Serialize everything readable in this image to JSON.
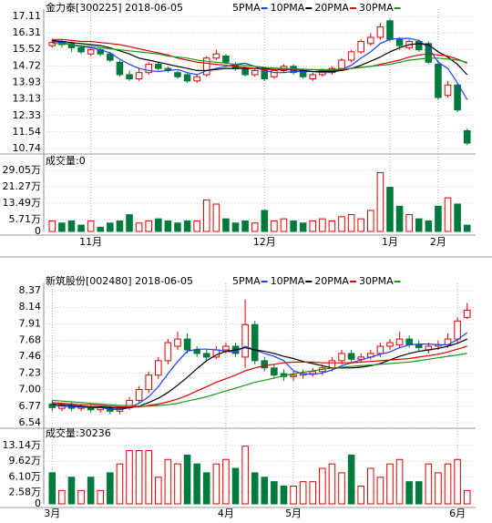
{
  "chart_data": [
    {
      "type": "candlestick",
      "title": "金力泰[300225] 2018-06-05",
      "categories": [
        null,
        null,
        null,
        null,
        "11月",
        null,
        null,
        null,
        null,
        null,
        null,
        null,
        null,
        null,
        null,
        null,
        null,
        null,
        null,
        null,
        null,
        null,
        "12月",
        null,
        null,
        null,
        null,
        null,
        null,
        null,
        null,
        null,
        null,
        null,
        null,
        "1月",
        null,
        null,
        null,
        null,
        "2月",
        null,
        null,
        null
      ],
      "open": [
        15.7,
        15.9,
        15.8,
        15.6,
        15.3,
        15.5,
        15.3,
        14.9,
        14.3,
        14.1,
        14.4,
        14.8,
        14.6,
        14.4,
        14.3,
        14.0,
        14.3,
        15.1,
        15.2,
        14.8,
        14.6,
        14.3,
        14.5,
        14.2,
        14.5,
        14.7,
        14.5,
        14.1,
        14.3,
        14.4,
        14.6,
        15.0,
        15.4,
        15.8,
        16.1,
        16.9,
        16.0,
        15.6,
        15.9,
        15.8,
        14.8,
        13.3,
        13.8,
        11.6
      ],
      "high": [
        16.0,
        16.0,
        15.9,
        15.7,
        15.6,
        15.6,
        15.4,
        15.0,
        14.5,
        14.6,
        14.9,
        14.9,
        14.7,
        14.5,
        14.4,
        14.3,
        15.2,
        15.5,
        15.3,
        14.9,
        14.7,
        14.6,
        14.6,
        14.6,
        14.8,
        14.8,
        14.6,
        14.4,
        14.6,
        14.7,
        15.1,
        15.5,
        16.0,
        16.3,
        16.8,
        17.0,
        16.1,
        16.0,
        16.0,
        15.9,
        15.0,
        14.0,
        13.9,
        11.7
      ],
      "low": [
        15.6,
        15.6,
        15.4,
        15.3,
        15.2,
        15.2,
        14.9,
        14.2,
        14.0,
        14.0,
        14.3,
        14.5,
        14.4,
        14.1,
        13.9,
        13.9,
        14.2,
        15.0,
        14.8,
        14.5,
        14.2,
        14.2,
        14.0,
        14.1,
        14.4,
        14.3,
        14.1,
        14.0,
        14.2,
        14.3,
        14.5,
        14.9,
        15.3,
        15.7,
        16.0,
        15.9,
        15.5,
        15.5,
        15.4,
        14.8,
        13.1,
        13.2,
        12.5,
        10.9
      ],
      "close": [
        15.85,
        15.75,
        15.6,
        15.4,
        15.5,
        15.3,
        15.0,
        14.3,
        14.1,
        14.4,
        14.8,
        14.6,
        14.5,
        14.2,
        14.0,
        14.2,
        15.1,
        15.3,
        14.9,
        14.6,
        14.3,
        14.5,
        14.1,
        14.5,
        14.7,
        14.4,
        14.2,
        14.3,
        14.5,
        14.6,
        15.0,
        15.4,
        15.9,
        16.1,
        16.6,
        16.0,
        15.7,
        15.9,
        15.5,
        14.9,
        13.2,
        13.8,
        12.6,
        11.0
      ],
      "up_color": "#e00000",
      "down_color": "#007a3d",
      "series": [
        {
          "name": "5PMA",
          "color": "#1f3fff",
          "values": [
            15.9,
            15.85,
            15.75,
            15.65,
            15.6,
            15.5,
            15.35,
            15.05,
            14.8,
            14.6,
            14.5,
            14.45,
            14.5,
            14.55,
            14.4,
            14.3,
            14.5,
            14.6,
            14.7,
            14.8,
            14.85,
            14.7,
            14.5,
            14.4,
            14.4,
            14.45,
            14.45,
            14.45,
            14.4,
            14.4,
            14.55,
            14.75,
            15.1,
            15.4,
            15.8,
            16.0,
            16.05,
            16.05,
            15.95,
            15.6,
            14.9,
            14.6,
            13.9,
            13.1
          ]
        },
        {
          "name": "10PMA",
          "color": "#000000",
          "values": [
            15.95,
            15.9,
            15.85,
            15.8,
            15.75,
            15.7,
            15.6,
            15.45,
            15.3,
            15.1,
            15.0,
            14.9,
            14.8,
            14.7,
            14.6,
            14.5,
            14.5,
            14.55,
            14.6,
            14.6,
            14.6,
            14.6,
            14.6,
            14.55,
            14.55,
            14.55,
            14.5,
            14.45,
            14.45,
            14.45,
            14.5,
            14.6,
            14.75,
            14.95,
            15.15,
            15.4,
            15.6,
            15.75,
            15.8,
            15.75,
            15.4,
            15.15,
            14.8,
            14.3
          ]
        },
        {
          "name": "20PMA",
          "color": "#e00000",
          "values": [
            16.0,
            16.0,
            15.95,
            15.9,
            15.9,
            15.85,
            15.8,
            15.75,
            15.65,
            15.55,
            15.45,
            15.35,
            15.25,
            15.1,
            15.0,
            14.9,
            14.85,
            14.8,
            14.75,
            14.7,
            14.65,
            14.6,
            14.55,
            14.55,
            14.55,
            14.55,
            14.55,
            14.55,
            14.5,
            14.5,
            14.55,
            14.6,
            14.65,
            14.7,
            14.8,
            14.9,
            15.0,
            15.15,
            15.25,
            15.3,
            15.25,
            15.2,
            15.05,
            14.85
          ]
        },
        {
          "name": "30PMA",
          "color": "#1a9a1a",
          "values": [
            15.8,
            15.8,
            15.75,
            15.7,
            15.65,
            15.6,
            15.55,
            15.5,
            15.45,
            15.4,
            15.35,
            15.3,
            15.2,
            15.15,
            15.1,
            15.0,
            14.95,
            14.9,
            14.85,
            14.8,
            14.75,
            14.7,
            14.65,
            14.62,
            14.6,
            14.58,
            14.56,
            14.55,
            14.55,
            14.55,
            14.57,
            14.6,
            14.65,
            14.7,
            14.75,
            14.8,
            14.9,
            15.0,
            15.05,
            15.1,
            15.1,
            15.05,
            15.0,
            14.9
          ]
        }
      ],
      "ylim": [
        10.74,
        17.11
      ],
      "yticks": [
        17.11,
        16.31,
        15.52,
        14.72,
        13.93,
        13.13,
        12.33,
        11.54,
        10.74
      ],
      "volume": {
        "title": "成交量:0",
        "values": [
          5,
          4,
          5,
          3,
          5,
          2,
          4,
          5,
          8,
          4,
          5,
          6,
          5,
          4,
          5,
          5,
          15,
          13,
          6,
          4,
          5,
          4,
          10,
          5,
          6,
          5,
          4,
          5,
          6,
          5,
          7,
          8,
          6,
          10,
          28,
          21,
          12,
          8,
          6,
          5,
          12,
          16,
          13,
          3
        ],
        "ylim": [
          0,
          29.05
        ],
        "yticks": [
          {
            "value": 29.05,
            "label": "29.05万"
          },
          {
            "value": 21.27,
            "label": "21.27万"
          },
          {
            "value": 13.49,
            "label": "13.49万"
          },
          {
            "value": 5.71,
            "label": "5.71万"
          },
          0
        ]
      }
    },
    {
      "type": "candlestick",
      "title": "新筑股份[002480] 2018-06-05",
      "categories": [
        "3月",
        null,
        null,
        null,
        null,
        null,
        null,
        null,
        null,
        null,
        null,
        null,
        null,
        null,
        null,
        null,
        null,
        null,
        "4月",
        null,
        null,
        null,
        null,
        null,
        null,
        "5月",
        null,
        null,
        null,
        null,
        null,
        null,
        null,
        null,
        null,
        null,
        null,
        null,
        null,
        null,
        null,
        null,
        "6月",
        null
      ],
      "open": [
        6.8,
        6.74,
        6.78,
        6.74,
        6.76,
        6.72,
        6.75,
        6.7,
        6.75,
        6.85,
        7.0,
        7.2,
        7.4,
        7.6,
        7.7,
        7.55,
        7.5,
        7.45,
        7.55,
        7.6,
        7.45,
        7.9,
        7.4,
        7.3,
        7.22,
        7.18,
        7.2,
        7.22,
        7.25,
        7.3,
        7.4,
        7.5,
        7.42,
        7.45,
        7.5,
        7.6,
        7.62,
        7.7,
        7.62,
        7.55,
        7.6,
        7.62,
        7.7,
        8.0
      ],
      "high": [
        6.85,
        6.82,
        6.82,
        6.8,
        6.8,
        6.78,
        6.78,
        6.78,
        6.9,
        7.05,
        7.25,
        7.45,
        7.7,
        7.8,
        7.78,
        7.6,
        7.55,
        7.6,
        7.65,
        7.65,
        8.25,
        7.95,
        7.45,
        7.35,
        7.28,
        7.25,
        7.28,
        7.3,
        7.35,
        7.45,
        7.55,
        7.55,
        7.5,
        7.55,
        7.65,
        7.7,
        7.8,
        7.75,
        7.68,
        7.65,
        7.68,
        7.78,
        8.0,
        8.2
      ],
      "low": [
        6.7,
        6.7,
        6.7,
        6.7,
        6.68,
        6.68,
        6.66,
        6.66,
        6.72,
        6.82,
        6.95,
        7.15,
        7.35,
        7.55,
        7.5,
        7.45,
        7.4,
        7.42,
        7.5,
        7.45,
        7.3,
        7.35,
        7.25,
        7.15,
        7.12,
        7.12,
        7.15,
        7.18,
        7.2,
        7.25,
        7.35,
        7.38,
        7.38,
        7.42,
        7.45,
        7.55,
        7.58,
        7.58,
        7.52,
        7.5,
        7.55,
        7.58,
        7.65,
        7.98
      ],
      "close": [
        6.75,
        6.78,
        6.74,
        6.76,
        6.72,
        6.75,
        6.7,
        6.75,
        6.85,
        7.0,
        7.2,
        7.4,
        7.65,
        7.7,
        7.55,
        7.5,
        7.45,
        7.55,
        7.6,
        7.5,
        7.9,
        7.4,
        7.3,
        7.2,
        7.18,
        7.2,
        7.22,
        7.25,
        7.3,
        7.4,
        7.5,
        7.42,
        7.45,
        7.5,
        7.6,
        7.65,
        7.7,
        7.62,
        7.58,
        7.6,
        7.62,
        7.7,
        7.95,
        8.1
      ],
      "up_color": "#e00000",
      "down_color": "#007a3d",
      "series": [
        {
          "name": "5PMA",
          "color": "#1f3fff",
          "values": [
            6.78,
            6.77,
            6.76,
            6.76,
            6.75,
            6.75,
            6.73,
            6.72,
            6.75,
            6.81,
            6.9,
            7.04,
            7.22,
            7.39,
            7.53,
            7.56,
            7.56,
            7.55,
            7.53,
            7.52,
            7.6,
            7.55,
            7.5,
            7.46,
            7.4,
            7.26,
            7.22,
            7.21,
            7.23,
            7.27,
            7.33,
            7.37,
            7.41,
            7.45,
            7.49,
            7.52,
            7.58,
            7.62,
            7.63,
            7.63,
            7.62,
            7.62,
            7.69,
            7.79
          ]
        },
        {
          "name": "10PMA",
          "color": "#000000",
          "values": [
            6.8,
            6.79,
            6.78,
            6.77,
            6.76,
            6.76,
            6.75,
            6.74,
            6.75,
            6.77,
            6.82,
            6.88,
            6.96,
            7.06,
            7.17,
            7.29,
            7.4,
            7.48,
            7.53,
            7.55,
            7.58,
            7.55,
            7.53,
            7.5,
            7.46,
            7.43,
            7.39,
            7.36,
            7.33,
            7.3,
            7.3,
            7.3,
            7.31,
            7.33,
            7.36,
            7.41,
            7.46,
            7.5,
            7.53,
            7.55,
            7.57,
            7.6,
            7.64,
            7.7
          ]
        },
        {
          "name": "20PMA",
          "color": "#e00000",
          "values": [
            6.82,
            6.81,
            6.8,
            6.79,
            6.79,
            6.78,
            6.77,
            6.76,
            6.76,
            6.76,
            6.78,
            6.8,
            6.83,
            6.87,
            6.92,
            6.98,
            7.04,
            7.1,
            7.15,
            7.2,
            7.26,
            7.3,
            7.33,
            7.35,
            7.37,
            7.38,
            7.38,
            7.38,
            7.37,
            7.37,
            7.37,
            7.37,
            7.38,
            7.39,
            7.4,
            7.41,
            7.42,
            7.43,
            7.45,
            7.47,
            7.49,
            7.52,
            7.56,
            7.6
          ]
        },
        {
          "name": "30PMA",
          "color": "#1a9a1a",
          "values": [
            6.85,
            6.84,
            6.83,
            6.82,
            6.81,
            6.8,
            6.79,
            6.78,
            6.78,
            6.77,
            6.77,
            6.78,
            6.79,
            6.81,
            6.84,
            6.87,
            6.9,
            6.94,
            6.98,
            7.02,
            7.06,
            7.1,
            7.13,
            7.16,
            7.19,
            7.22,
            7.24,
            7.26,
            7.28,
            7.3,
            7.31,
            7.32,
            7.33,
            7.34,
            7.35,
            7.36,
            7.37,
            7.38,
            7.4,
            7.42,
            7.44,
            7.46,
            7.48,
            7.5
          ]
        }
      ],
      "ylim": [
        6.54,
        8.37
      ],
      "yticks": [
        8.37,
        8.14,
        7.91,
        7.68,
        7.46,
        7.23,
        {
          "value": 7,
          "label": "7.00"
        },
        6.77,
        6.54
      ],
      "volume": {
        "title": "成交量:30236",
        "values": [
          7,
          3,
          6,
          3,
          6,
          3,
          7,
          9,
          12,
          12,
          12,
          6,
          10,
          9,
          11,
          9,
          7,
          9,
          10,
          8,
          13,
          7,
          6,
          5,
          4,
          4,
          5,
          5,
          8,
          9,
          7,
          11,
          4,
          8,
          6,
          9,
          10,
          5,
          5,
          9,
          7,
          9,
          10,
          3
        ],
        "ylim": [
          0,
          13.14
        ],
        "yticks": [
          {
            "value": 13.14,
            "label": "13.14万"
          },
          {
            "value": 9.62,
            "label": "9.62万"
          },
          {
            "value": 6.1,
            "label": "6.10万"
          },
          {
            "value": 2.58,
            "label": "2.58万"
          },
          0
        ]
      }
    }
  ]
}
